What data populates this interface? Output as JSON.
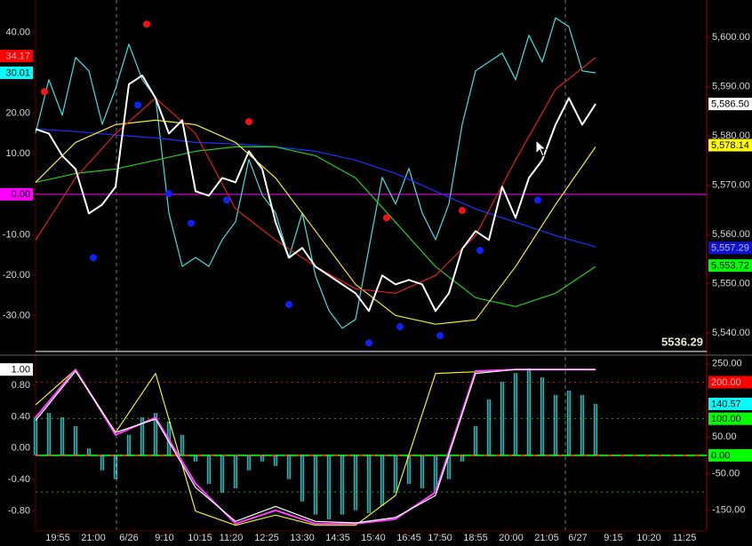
{
  "chart_data": [
    {
      "type": "line",
      "xlim": [
        0,
        151
      ],
      "ylim": [
        5535.9,
        5607.6
      ],
      "yticks": [
        {
          "value": 5540,
          "label": "5,540.00"
        },
        {
          "value": 5550,
          "label": "5,550.00"
        },
        {
          "value": 5560,
          "label": "5,560.00"
        },
        {
          "value": 5570,
          "label": "5,570.00"
        },
        {
          "value": 5580,
          "label": "5,580.00"
        },
        {
          "value": 5590,
          "label": "5,590.00"
        },
        {
          "value": 5600,
          "label": "5,600.00"
        }
      ],
      "y2lim": [
        -39.3,
        48.0
      ],
      "y2ticks": [
        {
          "value": 40,
          "label": "40.00"
        },
        {
          "value": 20,
          "label": "20.00"
        },
        {
          "value": 10,
          "label": "10.00"
        },
        {
          "value": -10,
          "label": "-10.00"
        },
        {
          "value": -20,
          "label": "-20.00"
        },
        {
          "value": -30,
          "label": "-30.00"
        }
      ],
      "vlines": [
        18.2,
        119.2
      ],
      "hlines": [
        {
          "value": 0,
          "axis": "y2",
          "color": "#ff00ff"
        },
        {
          "value": 5536.29,
          "label": "5536.29",
          "color": "#ffffff"
        }
      ],
      "series": [
        {
          "type": "line",
          "color": "#40e0e0",
          "axis": "y2",
          "x": [
            0,
            3,
            6,
            9,
            12,
            15,
            18,
            21,
            24,
            27,
            30,
            33,
            36,
            39,
            42,
            45,
            48,
            51,
            54,
            57,
            60,
            63,
            66,
            69,
            72,
            75,
            78,
            81,
            84,
            87,
            90,
            93,
            96,
            99,
            102,
            105,
            108,
            111,
            114,
            117,
            120,
            123,
            126
          ],
          "values": [
            15.1,
            28.3,
            19.5,
            33.8,
            30.5,
            17.3,
            26.1,
            37.1,
            28.3,
            23.9,
            -4.6,
            -17.8,
            -15.6,
            -17.8,
            -11.2,
            -6.8,
            8.6,
            -0.2,
            -4.6,
            -15.6,
            -4.6,
            -20.2,
            -28.7,
            -33.1,
            -30.9,
            -13.4,
            4.2,
            -2.4,
            6.4,
            -4.6,
            -11.2,
            -2.4,
            17.3,
            30.5,
            32.7,
            34.9,
            28.3,
            39.3,
            32.7,
            43.6,
            41.4,
            30.5,
            30.0
          ]
        },
        {
          "type": "line",
          "color": "#2030ff",
          "x": [
            0,
            9,
            18,
            27,
            36,
            45,
            54,
            63,
            72,
            81,
            90,
            99,
            108,
            117,
            126
          ],
          "values": [
            5581.4,
            5580.9,
            5580.2,
            5579.6,
            5578.7,
            5578.4,
            5577.8,
            5576.9,
            5575.1,
            5572.4,
            5568.8,
            5565.2,
            5562.5,
            5559.8,
            5557.5
          ]
        },
        {
          "type": "line",
          "color": "#20d020",
          "x": [
            0,
            9,
            18,
            27,
            36,
            45,
            54,
            63,
            72,
            81,
            90,
            99,
            108,
            117,
            126
          ],
          "values": [
            5570.6,
            5572.4,
            5573.3,
            5575.1,
            5576.9,
            5577.8,
            5577.8,
            5576.0,
            5571.5,
            5562.5,
            5553.5,
            5547.2,
            5545.4,
            5548.1,
            5553.5
          ]
        },
        {
          "type": "line",
          "color": "#f0f020",
          "x": [
            0,
            9,
            18,
            27,
            36,
            45,
            54,
            63,
            72,
            81,
            90,
            99,
            108,
            117,
            126
          ],
          "values": [
            5570.6,
            5578.7,
            5582.3,
            5583.2,
            5582.3,
            5578.7,
            5571.5,
            5560.7,
            5549.9,
            5543.6,
            5541.8,
            5542.7,
            5553.5,
            5566.1,
            5577.8
          ]
        },
        {
          "type": "line",
          "color": "#e02020",
          "x": [
            0,
            9,
            18,
            27,
            36,
            45,
            54,
            63,
            72,
            81,
            90,
            99,
            108,
            117,
            126
          ],
          "values": [
            5558.9,
            5571.5,
            5580.5,
            5587.7,
            5580.5,
            5565.2,
            5558.9,
            5553.5,
            5549.0,
            5548.1,
            5551.7,
            5559.8,
            5575.1,
            5589.5,
            5595.9
          ]
        },
        {
          "type": "line",
          "color": "#ffffff",
          "width": 2,
          "x": [
            0,
            3,
            6,
            9,
            12,
            15,
            18,
            21,
            24,
            27,
            30,
            33,
            36,
            39,
            42,
            45,
            48,
            51,
            54,
            57,
            60,
            63,
            66,
            69,
            72,
            75,
            78,
            81,
            84,
            87,
            90,
            93,
            96,
            99,
            102,
            105,
            108,
            111,
            114,
            117,
            120,
            123,
            126
          ],
          "values": [
            5581.4,
            5580.5,
            5576.0,
            5573.3,
            5564.3,
            5566.1,
            5569.7,
            5590.5,
            5592.3,
            5587.7,
            5580.5,
            5583.2,
            5568.8,
            5567.9,
            5571.5,
            5570.6,
            5576.9,
            5573.3,
            5562.5,
            5555.3,
            5557.3,
            5553.5,
            5551.7,
            5549.9,
            5548.1,
            5544.5,
            5551.7,
            5549.9,
            5550.8,
            5549.9,
            5544.5,
            5548.1,
            5557.1,
            5560.7,
            5558.9,
            5569.7,
            5563.4,
            5571.5,
            5575.1,
            5582.3,
            5587.7,
            5582.3,
            5586.5
          ]
        },
        {
          "type": "scatter",
          "color": "#ff1010",
          "x": [
            2,
            25,
            48,
            79,
            96
          ],
          "values": [
            5589.0,
            5602.7,
            5582.9,
            5563.4,
            5564.9
          ]
        },
        {
          "type": "scatter",
          "color": "#1020ff",
          "x": [
            13,
            23,
            30,
            35,
            43,
            57,
            75,
            82,
            91,
            100,
            113
          ],
          "values": [
            5555.3,
            5586.3,
            5568.3,
            5562.3,
            5567.0,
            5545.8,
            5538.0,
            5541.3,
            5539.5,
            5556.8,
            5567.0
          ]
        }
      ],
      "badges": [
        {
          "value": 34.17,
          "label": "34.17",
          "color": "#ff0000",
          "axis": "y2"
        },
        {
          "value": 30.01,
          "label": "30.01",
          "color": "#00ffff",
          "axis": "y2"
        },
        {
          "value": 0,
          "label": "0.00",
          "color": "#ff00ff",
          "axis": "y2"
        },
        {
          "value": 5586.5,
          "label": "5,586.50",
          "color": "#ffffff"
        },
        {
          "value": 5578.14,
          "label": "5,578.14",
          "color": "#ffff00"
        },
        {
          "value": 5557.29,
          "label": "5,557.29",
          "color": "#1010d0"
        },
        {
          "value": 5553.72,
          "label": "5,553.72",
          "color": "#00ff00"
        }
      ]
    },
    {
      "type": "line",
      "xlim": [
        0,
        151
      ],
      "xticks": [
        {
          "value": 5,
          "label": "19:55"
        },
        {
          "value": 13,
          "label": "21:00"
        },
        {
          "value": 21,
          "label": "6/26"
        },
        {
          "value": 29,
          "label": "9:10"
        },
        {
          "value": 37,
          "label": "10:15"
        },
        {
          "value": 44,
          "label": "11:20"
        },
        {
          "value": 52,
          "label": "12:25"
        },
        {
          "value": 60,
          "label": "13:30"
        },
        {
          "value": 68,
          "label": "14:35"
        },
        {
          "value": 76,
          "label": "15:40"
        },
        {
          "value": 84,
          "label": "16:45"
        },
        {
          "value": 91,
          "label": "17:50"
        },
        {
          "value": 99,
          "label": "18:55"
        },
        {
          "value": 107,
          "label": "20:00"
        },
        {
          "value": 115,
          "label": "21:05"
        },
        {
          "value": 122,
          "label": "6/27"
        },
        {
          "value": 130,
          "label": "9:15"
        },
        {
          "value": 138,
          "label": "10:20"
        },
        {
          "value": 146,
          "label": "11:25"
        }
      ],
      "ylim": [
        -204,
        269
      ],
      "yticks": [
        {
          "value": 250,
          "label": "250.00"
        },
        {
          "value": 50,
          "label": "50.00"
        },
        {
          "value": -50,
          "label": "-50.00"
        },
        {
          "value": -150,
          "label": "-150.00"
        }
      ],
      "y2lim": [
        -1.04,
        1.16
      ],
      "y2ticks": [
        {
          "value": 0.8,
          "label": "0.80"
        },
        {
          "value": 0.4,
          "label": "0.40"
        },
        {
          "value": 0,
          "label": "0.00"
        },
        {
          "value": -0.4,
          "label": "-0.40"
        },
        {
          "value": -0.8,
          "label": "-0.80"
        }
      ],
      "vlines": [
        18.2,
        119.2
      ],
      "hlines": [
        {
          "value": 200,
          "color": "#b02020",
          "dash": true
        },
        {
          "value": 100,
          "color": "#20a020",
          "dash": true
        },
        {
          "value": -100,
          "color": "#20a020",
          "dash": true
        },
        {
          "value": 0,
          "color": "#00e000",
          "dash_color": "#ff2020"
        }
      ],
      "series": [
        {
          "type": "bar",
          "color": "#40d0d0",
          "x": [
            0,
            3,
            6,
            9,
            12,
            15,
            18,
            21,
            24,
            27,
            30,
            33,
            36,
            39,
            42,
            45,
            48,
            51,
            54,
            57,
            60,
            63,
            66,
            69,
            72,
            75,
            78,
            81,
            84,
            87,
            90,
            93,
            96,
            99,
            102,
            105,
            108,
            111,
            114,
            117,
            120,
            123,
            126
          ],
          "values": [
            104,
            116,
            104,
            80,
            19,
            -41,
            -65,
            56,
            104,
            116,
            92,
            56,
            -17,
            -78,
            -102,
            -90,
            -41,
            -17,
            -29,
            -65,
            -126,
            -162,
            -175,
            -162,
            -150,
            -158,
            -138,
            -102,
            -78,
            -90,
            -102,
            -65,
            -17,
            80,
            153,
            201,
            225,
            238,
            213,
            165,
            177,
            165,
            140.6
          ]
        },
        {
          "type": "line",
          "color": "#f0f020",
          "axis": "y2",
          "x": [
            0,
            9,
            18,
            27,
            36,
            45,
            54,
            63,
            72,
            81,
            90,
            99,
            108,
            117,
            126
          ],
          "values": [
            0.55,
            1.0,
            0.2,
            0.95,
            -0.8,
            -0.98,
            -0.85,
            -0.98,
            -0.98,
            -0.6,
            0.95,
            0.97,
            1.0,
            1.0,
            1.0
          ]
        },
        {
          "type": "line",
          "color": "#ff40ff",
          "axis": "y2",
          "width": 2,
          "x": [
            0,
            9,
            18,
            27,
            36,
            45,
            54,
            63,
            72,
            81,
            90,
            99,
            108,
            117,
            126
          ],
          "values": [
            0.39,
            1.0,
            0.17,
            0.39,
            -0.45,
            -0.96,
            -0.79,
            -0.96,
            -0.96,
            -0.9,
            -0.56,
            0.98,
            1.0,
            1.0,
            1.0
          ]
        },
        {
          "type": "line",
          "color": "#ffffff",
          "axis": "y2",
          "x": [
            0,
            9,
            18,
            27,
            36,
            45,
            54,
            63,
            72,
            81,
            90,
            99,
            108,
            117,
            126
          ],
          "values": [
            0.35,
            0.98,
            0.2,
            0.37,
            -0.5,
            -0.93,
            -0.74,
            -0.93,
            -0.95,
            -0.88,
            -0.6,
            0.95,
            1.0,
            1.0,
            1.0
          ]
        }
      ],
      "badges": [
        {
          "value": 1,
          "label": "1.00",
          "color": "#ffffff",
          "axis": "y2"
        },
        {
          "value": 200,
          "label": "200.00",
          "color": "#ff0000"
        },
        {
          "value": 140.57,
          "label": "140.57",
          "color": "#00ffff"
        },
        {
          "value": 100,
          "label": "100.00",
          "color": "#00ff00"
        },
        {
          "value": 0,
          "label": "0.00",
          "color": "#00ff00"
        }
      ]
    }
  ]
}
